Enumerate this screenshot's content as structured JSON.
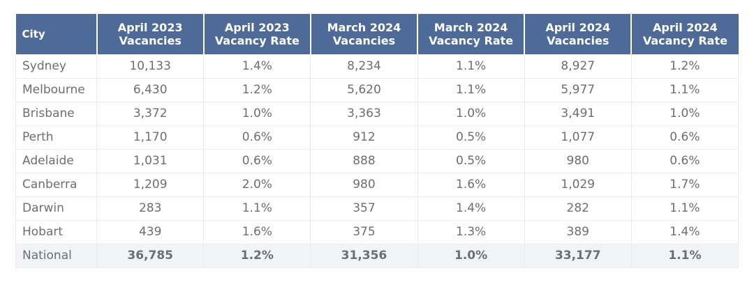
{
  "table": {
    "headers": [
      [
        "City"
      ],
      [
        "April 2023",
        "Vacancies"
      ],
      [
        "April 2023",
        "Vacancy Rate"
      ],
      [
        "March 2024",
        "Vacancies"
      ],
      [
        "March 2024",
        "Vacancy Rate"
      ],
      [
        "April 2024",
        "Vacancies"
      ],
      [
        "April 2024",
        "Vacancy Rate"
      ]
    ],
    "rows": [
      [
        "Sydney",
        "10,133",
        "1.4%",
        "8,234",
        "1.1%",
        "8,927",
        "1.2%"
      ],
      [
        "Melbourne",
        "6,430",
        "1.2%",
        "5,620",
        "1.1%",
        "5,977",
        "1.1%"
      ],
      [
        "Brisbane",
        "3,372",
        "1.0%",
        "3,363",
        "1.0%",
        "3,491",
        "1.0%"
      ],
      [
        "Perth",
        "1,170",
        "0.6%",
        "912",
        "0.5%",
        "1,077",
        "0.6%"
      ],
      [
        "Adelaide",
        "1,031",
        "0.6%",
        "888",
        "0.5%",
        "980",
        "0.6%"
      ],
      [
        "Canberra",
        "1,209",
        "2.0%",
        "980",
        "1.6%",
        "1,029",
        "1.7%"
      ],
      [
        "Darwin",
        "283",
        "1.1%",
        "357",
        "1.4%",
        "282",
        "1.1%"
      ],
      [
        "Hobart",
        "439",
        "1.6%",
        "375",
        "1.3%",
        "389",
        "1.4%"
      ],
      [
        "National",
        "36,785",
        "1.2%",
        "31,356",
        "1.0%",
        "33,177",
        "1.1%"
      ]
    ]
  },
  "colors": {
    "header_bg": "#4e6a99",
    "header_text": "#ffffff",
    "body_text": "#6b6e72",
    "grid": "#e9ebee",
    "total_row_bg": "#f1f3f7"
  }
}
